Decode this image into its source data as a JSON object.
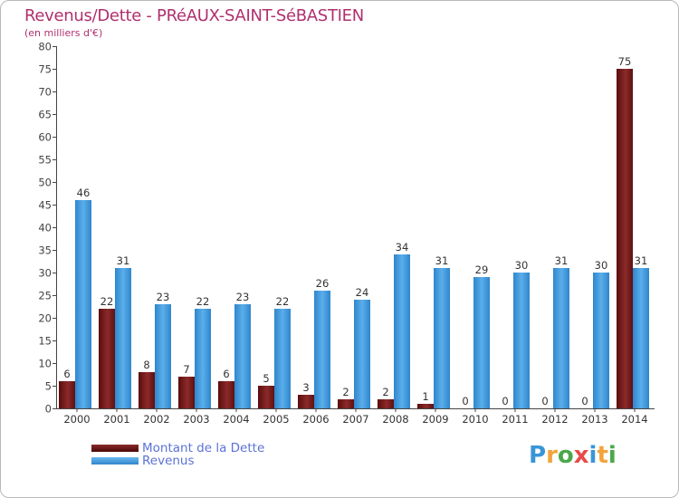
{
  "chart_data": {
    "type": "bar",
    "title": "Revenus/Dette - PRéAUX-SAINT-SéBASTIEN",
    "subtitle": "(en milliers d'€)",
    "xlabel": "",
    "ylabel": "",
    "categories": [
      "2000",
      "2001",
      "2002",
      "2003",
      "2004",
      "2005",
      "2006",
      "2007",
      "2008",
      "2009",
      "2010",
      "2011",
      "2012",
      "2013",
      "2014"
    ],
    "series": [
      {
        "name": "Montant de la Dette",
        "color": "#7a1b1b",
        "values": [
          6,
          22,
          8,
          7,
          6,
          5,
          3,
          2,
          2,
          1,
          0,
          0,
          0,
          0,
          75
        ]
      },
      {
        "name": "Revenus",
        "color": "#3a95d8",
        "values": [
          46,
          31,
          23,
          22,
          23,
          22,
          26,
          24,
          34,
          31,
          29,
          30,
          31,
          30,
          31
        ]
      }
    ],
    "ylim": [
      0,
      80
    ],
    "yticks": [
      0,
      5,
      10,
      15,
      20,
      25,
      30,
      35,
      40,
      45,
      50,
      55,
      60,
      65,
      70,
      75,
      80
    ],
    "grid": false,
    "legend": "bottom-left"
  },
  "logo": {
    "letters": [
      "P",
      "r",
      "o",
      "x",
      "i",
      "t",
      "i"
    ],
    "colors": [
      "#3a95d8",
      "#f2a43a",
      "#4aa84a",
      "#e84a4a",
      "#3a95d8",
      "#f2a43a",
      "#4aa84a"
    ]
  }
}
